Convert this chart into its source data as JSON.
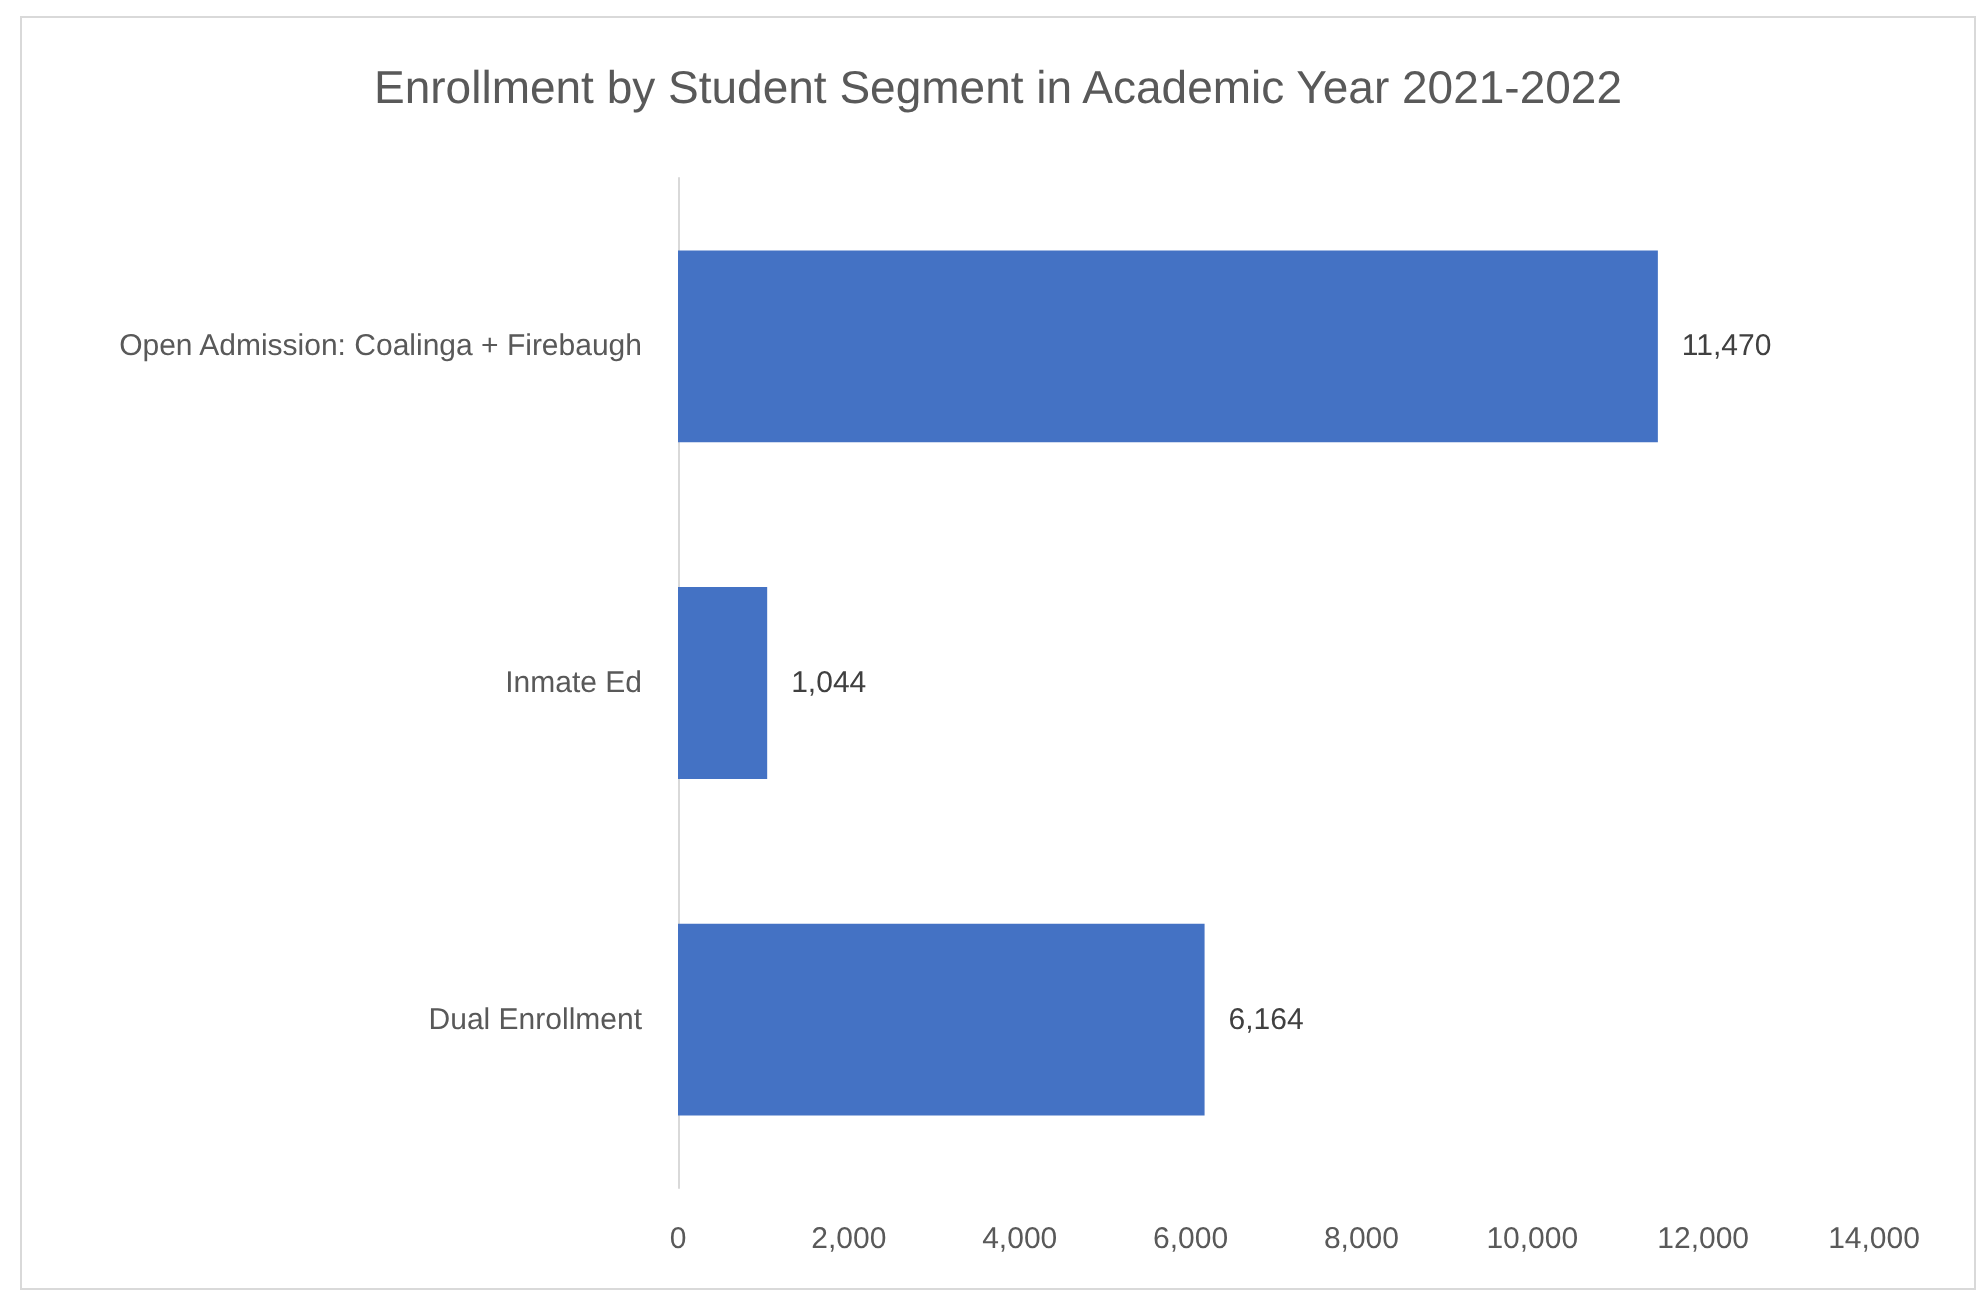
{
  "chart_data": {
    "type": "bar",
    "orientation": "horizontal",
    "title": "Enrollment by Student Segment in Academic Year 2021-2022",
    "categories": [
      "Open Admission: Coalinga + Firebaugh",
      "Inmate Ed",
      "Dual Enrollment"
    ],
    "values": [
      11470,
      1044,
      6164
    ],
    "color": "#4472c4",
    "value_labels": [
      "11,470",
      "1,044",
      "6,164"
    ],
    "xlim": [
      0,
      14000
    ],
    "xticks": [
      0,
      {
        "value": 2000,
        "label": "2,000"
      },
      {
        "value": 4000,
        "label": "4,000"
      },
      {
        "value": 6000,
        "label": "6,000"
      },
      {
        "value": 8000,
        "label": "8,000"
      },
      {
        "value": 10000,
        "label": "10,000"
      },
      {
        "value": 12000,
        "label": "12,000"
      },
      {
        "value": 14000,
        "label": "14,000"
      }
    ],
    "grid": false
  }
}
